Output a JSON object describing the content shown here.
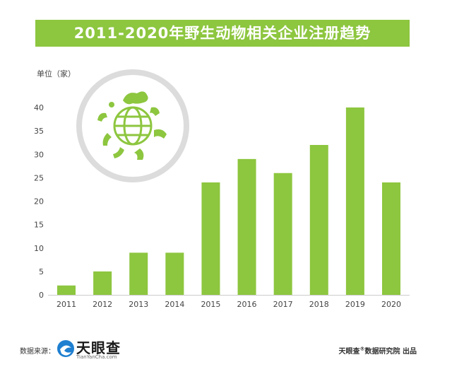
{
  "title": "2011-2020年野生动物相关企业注册趋势",
  "unit_label": "单位（家）",
  "footer": {
    "source_label": "数据来源：",
    "logo_text": "天眼查",
    "logo_url": "TianYanCha.com",
    "credit_brand": "天眼查",
    "credit_mark": "®",
    "credit_rest": "数据研究院 出品"
  },
  "colors": {
    "bar": "#8dc63f",
    "title_bg": "#8dc63f",
    "logo_blue": "#1e7fd0"
  },
  "icons": [
    "globe-wildlife-icon",
    "tianyancha-logo-icon"
  ],
  "chart_data": {
    "type": "bar",
    "categories": [
      "2011",
      "2012",
      "2013",
      "2014",
      "2015",
      "2016",
      "2017",
      "2018",
      "2019",
      "2020"
    ],
    "values": [
      2,
      5,
      9,
      9,
      24,
      29,
      26,
      32,
      40,
      24
    ],
    "ylabel": "单位（家）",
    "ylim": [
      0,
      40
    ],
    "yticks": [
      0,
      5,
      10,
      15,
      20,
      25,
      30,
      35,
      40
    ],
    "grid": false,
    "legend": "none"
  }
}
